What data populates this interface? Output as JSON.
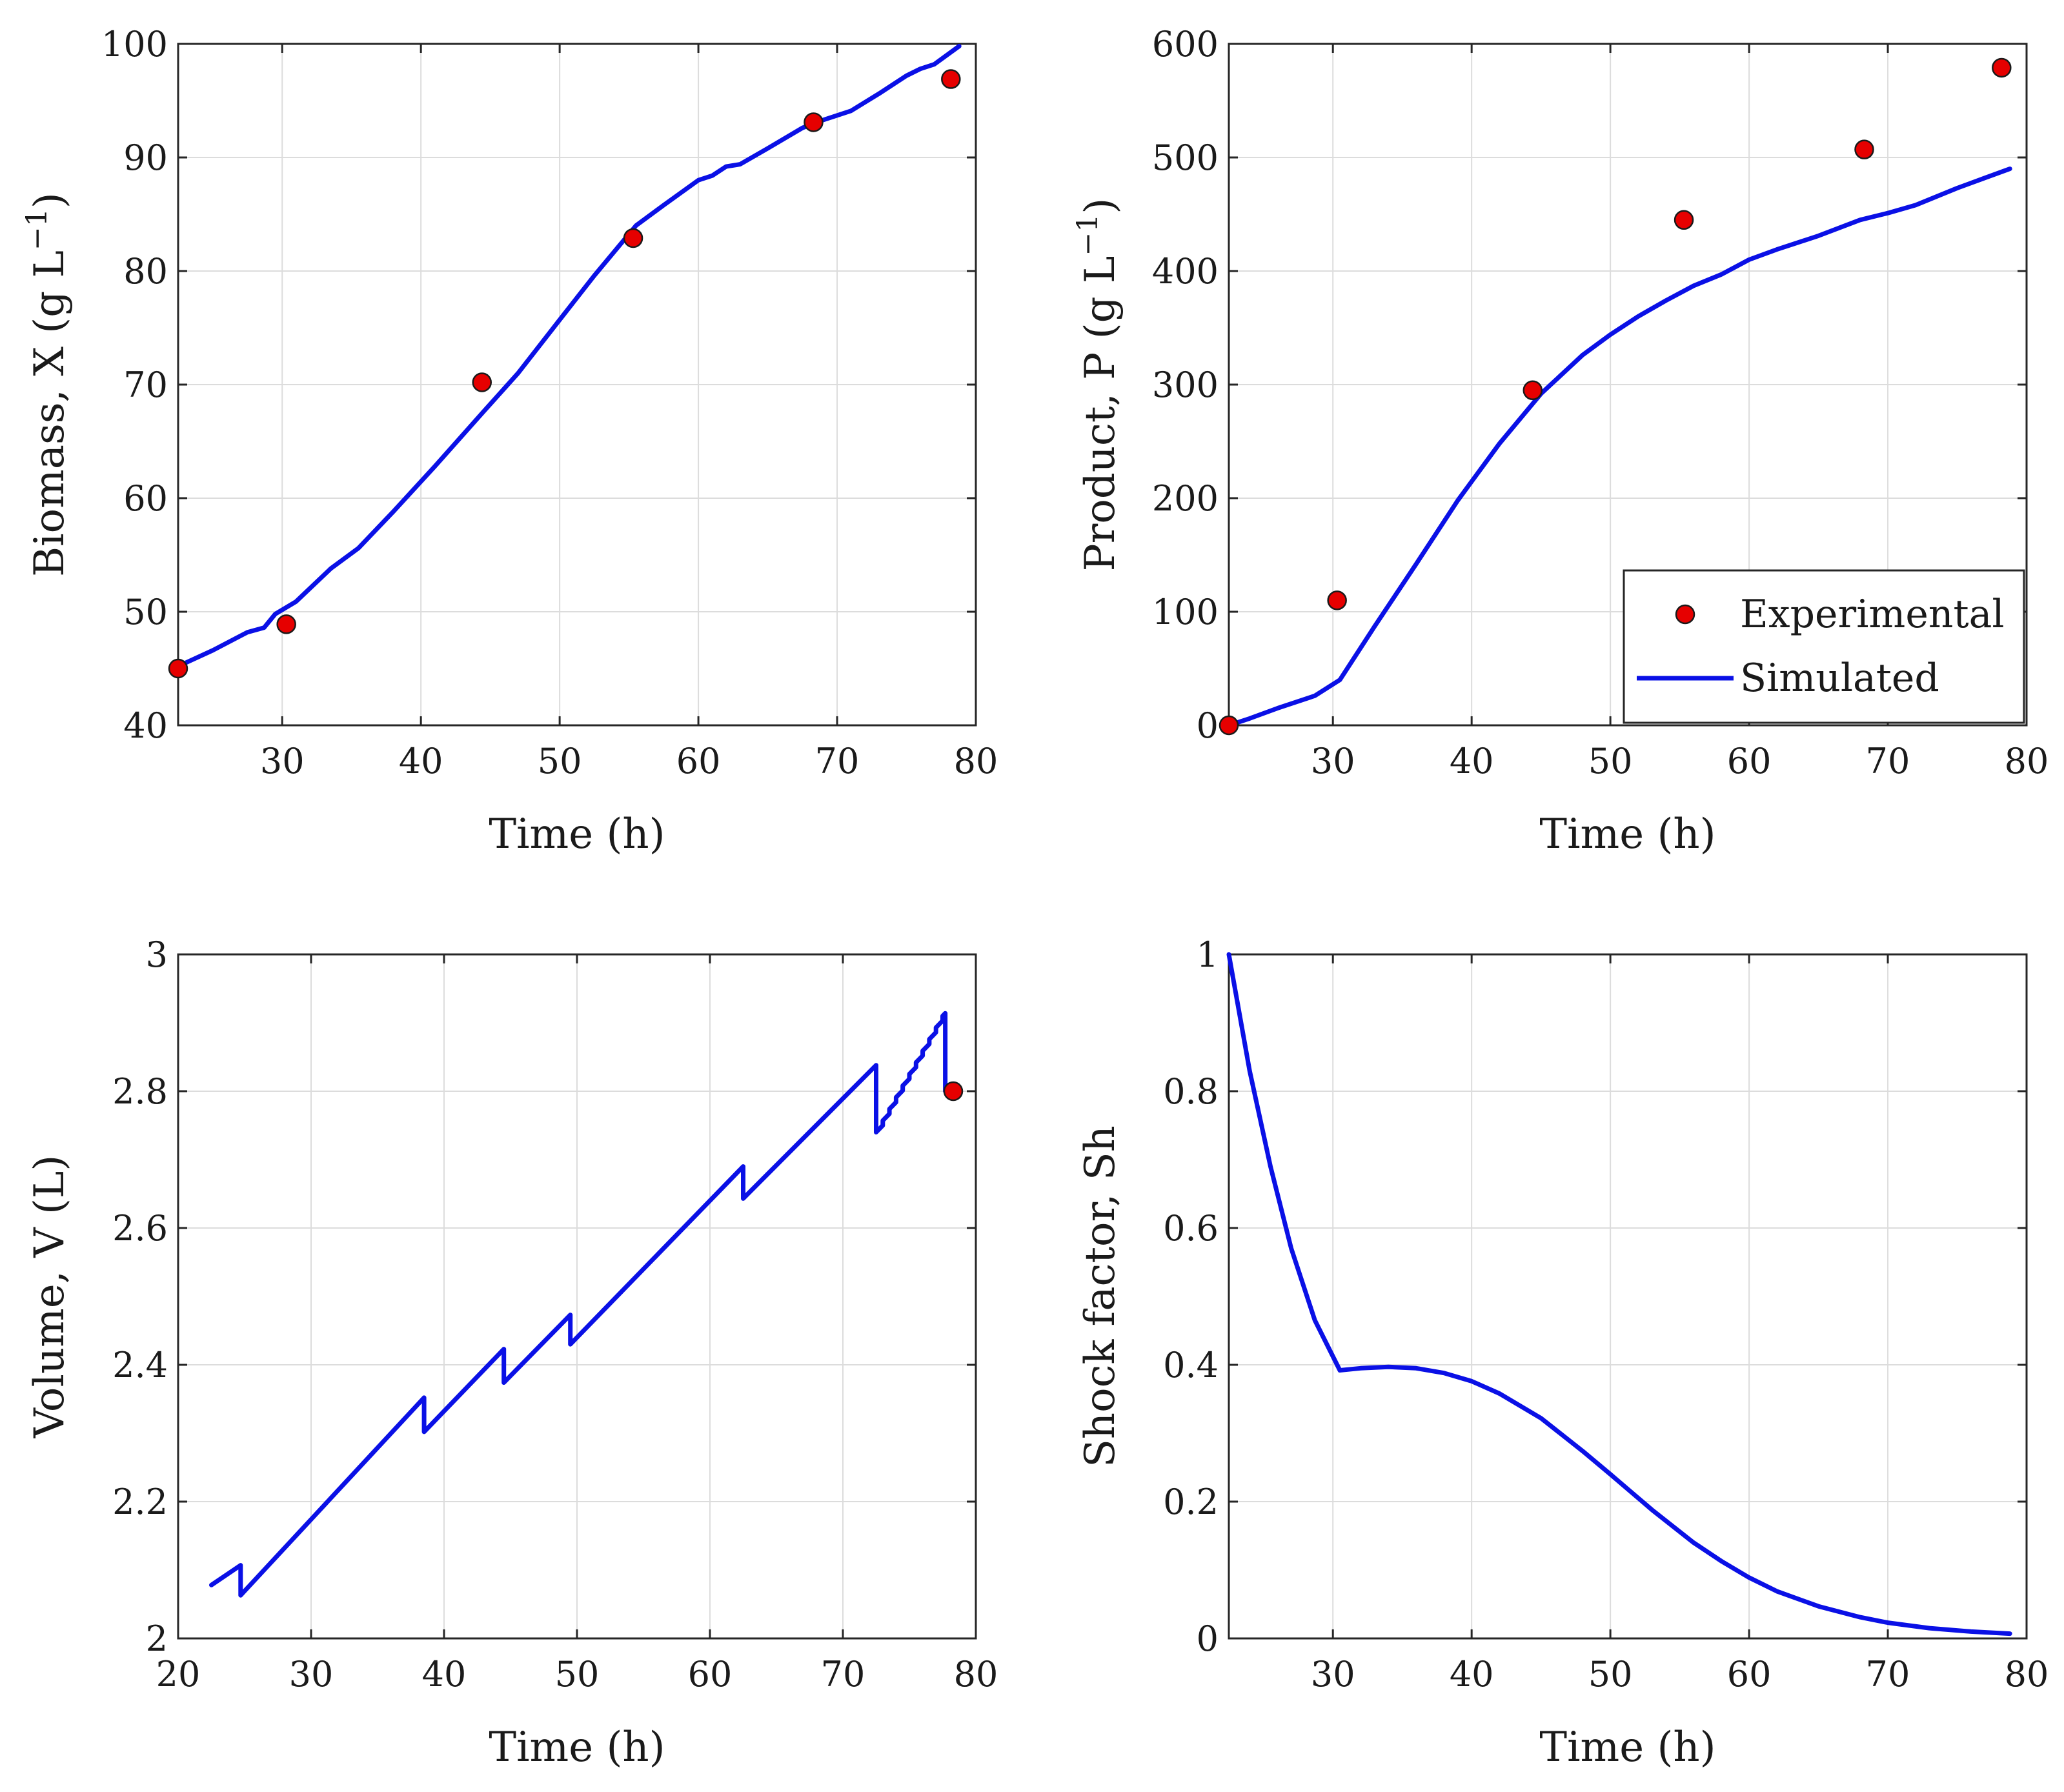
{
  "colors": {
    "simulated": "#0a10e6",
    "experimental": "#e60000",
    "marker_edge": "#1a1a1a"
  },
  "legend": {
    "experimental": "Experimental",
    "simulated": "Simulated",
    "position": "bottom-right"
  },
  "chart_data": [
    {
      "id": "biomass",
      "type": "line",
      "xlabel": "Time (h)",
      "ylabel": "Biomass, X (g L",
      "ylabel_sup": "−1",
      "ylabel_close": ")",
      "xlim": [
        22.5,
        80
      ],
      "ylim": [
        40,
        100
      ],
      "xticks": [
        30,
        40,
        50,
        60,
        70,
        80
      ],
      "yticks": [
        40,
        50,
        60,
        70,
        80,
        90,
        100
      ],
      "legend": false,
      "series": [
        {
          "name": "Simulated",
          "kind": "line",
          "x": [
            22.5,
            25,
            27.5,
            28.7,
            29.5,
            31,
            33.5,
            35.5,
            38,
            41,
            44.5,
            47,
            50,
            52.5,
            55.5,
            57.5,
            60,
            61,
            62,
            63,
            65,
            67.5,
            69,
            71,
            73,
            75,
            76,
            77,
            78.8
          ],
          "y": [
            45.2,
            46.6,
            48.2,
            48.6,
            49.8,
            50.9,
            53.8,
            55.6,
            58.8,
            62.8,
            67.6,
            71.0,
            75.7,
            79.6,
            84.0,
            85.8,
            88.0,
            88.4,
            89.2,
            89.4,
            90.8,
            92.6,
            93.3,
            94.1,
            95.6,
            97.2,
            97.8,
            98.2,
            99.8
          ]
        },
        {
          "name": "Experimental",
          "kind": "scatter",
          "x": [
            22.5,
            30.3,
            44.4,
            55.3,
            68.3,
            78.2
          ],
          "y": [
            45.0,
            48.9,
            70.2,
            82.9,
            93.1,
            96.9
          ]
        }
      ]
    },
    {
      "id": "product",
      "type": "line",
      "xlabel": "Time (h)",
      "ylabel": "Product, P (g L",
      "ylabel_sup": "−1",
      "ylabel_close": ")",
      "xlim": [
        22.5,
        80
      ],
      "ylim": [
        0,
        600
      ],
      "xticks": [
        30,
        40,
        50,
        60,
        70,
        80
      ],
      "yticks": [
        0,
        100,
        200,
        300,
        400,
        500,
        600
      ],
      "legend": true,
      "series": [
        {
          "name": "Simulated",
          "kind": "line",
          "x": [
            22.5,
            24,
            26,
            28.7,
            30.5,
            33,
            36,
            39,
            42,
            45,
            48,
            50,
            52,
            54,
            56,
            58,
            60,
            62,
            65,
            68,
            70,
            72,
            75,
            77,
            78.8
          ],
          "y": [
            0,
            6,
            15,
            26,
            40,
            87,
            142,
            198,
            248,
            292,
            326,
            344,
            360,
            374,
            387,
            397,
            410,
            419,
            431,
            445,
            451,
            458,
            473,
            482,
            490
          ]
        },
        {
          "name": "Experimental",
          "kind": "scatter",
          "x": [
            22.5,
            30.3,
            44.4,
            55.3,
            68.3,
            78.2
          ],
          "y": [
            0,
            110,
            295,
            445,
            507,
            579
          ]
        }
      ]
    },
    {
      "id": "volume",
      "type": "line",
      "xlabel": "Time (h)",
      "ylabel": "Volume, V (L)",
      "xlim": [
        20,
        80
      ],
      "ylim": [
        2,
        3
      ],
      "xticks": [
        20,
        30,
        40,
        50,
        60,
        70,
        80
      ],
      "yticks": [
        2,
        2.2,
        2.4,
        2.6,
        2.8,
        3
      ],
      "legend": false,
      "series": [
        {
          "name": "Simulated",
          "kind": "line",
          "x": [
            22.5,
            24.7,
            24.7,
            38.5,
            38.5,
            44.5,
            44.5,
            49.5,
            49.5,
            62.5,
            62.5,
            72.5,
            72.5,
            73,
            73,
            73.5,
            73.5,
            74,
            74,
            74.5,
            74.5,
            75,
            75,
            75.5,
            75.5,
            76,
            76,
            76.5,
            76.5,
            77,
            77,
            77.5,
            77.5,
            77.7,
            77.7,
            78.8
          ],
          "y": [
            2.078,
            2.107,
            2.063,
            2.352,
            2.302,
            2.423,
            2.374,
            2.473,
            2.43,
            2.69,
            2.643,
            2.838,
            2.74,
            2.75,
            2.757,
            2.767,
            2.774,
            2.784,
            2.791,
            2.801,
            2.808,
            2.818,
            2.825,
            2.835,
            2.842,
            2.852,
            2.859,
            2.869,
            2.876,
            2.886,
            2.893,
            2.903,
            2.91,
            2.914,
            2.8,
            2.8
          ]
        },
        {
          "name": "Experimental",
          "kind": "scatter",
          "x": [
            78.3
          ],
          "y": [
            2.8
          ]
        }
      ]
    },
    {
      "id": "shock",
      "type": "line",
      "xlabel": "Time (h)",
      "ylabel": "Shock factor, Sh",
      "xlim": [
        22.5,
        80
      ],
      "ylim": [
        0,
        1
      ],
      "xticks": [
        30,
        40,
        50,
        60,
        70,
        80
      ],
      "yticks": [
        0,
        0.2,
        0.4,
        0.6,
        0.8,
        1
      ],
      "legend": false,
      "series": [
        {
          "name": "Simulated",
          "kind": "line",
          "x": [
            22.5,
            24,
            25.5,
            27,
            28.7,
            30.5,
            32,
            34,
            36,
            38,
            40,
            42,
            45,
            48,
            50,
            53,
            56,
            58,
            60,
            62,
            65,
            68,
            70,
            73,
            76,
            78.8
          ],
          "y": [
            1.0,
            0.83,
            0.69,
            0.57,
            0.465,
            0.392,
            0.395,
            0.397,
            0.395,
            0.388,
            0.376,
            0.358,
            0.322,
            0.274,
            0.24,
            0.188,
            0.14,
            0.113,
            0.089,
            0.069,
            0.047,
            0.031,
            0.023,
            0.015,
            0.01,
            0.007
          ]
        }
      ]
    }
  ]
}
